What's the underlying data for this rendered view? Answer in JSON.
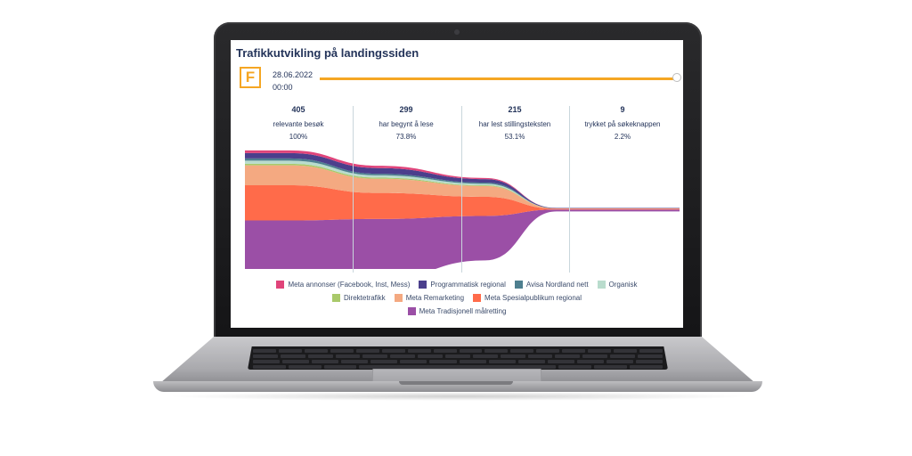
{
  "dashboard": {
    "title": "Trafikkutvikling på landingssiden",
    "logo_letter": "F",
    "date": "28.06.2022",
    "time": "00:00",
    "timeline_progress": 1.0
  },
  "colors": {
    "accent": "#f5a623",
    "text": "#24345a"
  },
  "chart_data": {
    "type": "area",
    "stages": [
      {
        "value": "405",
        "label": "relevante besøk",
        "percent": "100%"
      },
      {
        "value": "299",
        "label": "har begynt å lese",
        "percent": "73.8%"
      },
      {
        "value": "215",
        "label": "har lest stillingsteksten",
        "percent": "53.1%"
      },
      {
        "value": "9",
        "label": "trykket på søkeknappen",
        "percent": "2.2%"
      }
    ],
    "series": [
      {
        "name": "Meta Tradisjonell målretting",
        "color": "#9b4fa6",
        "values": [
          222,
          160,
          116,
          5
        ]
      },
      {
        "name": "Meta Spesialpublikum regional",
        "color": "#ff6b4a",
        "values": [
          92,
          68,
          50,
          2
        ]
      },
      {
        "name": "Meta Remarketing",
        "color": "#f4a981",
        "values": [
          52,
          37,
          28,
          1
        ]
      },
      {
        "name": "Direktetrafikk",
        "color": "#a9c96a",
        "values": [
          4,
          3,
          2,
          0
        ]
      },
      {
        "name": "Organisk",
        "color": "#b9dccd",
        "values": [
          8,
          6,
          4,
          0
        ]
      },
      {
        "name": "Avisa Nordland nett",
        "color": "#4e7f8f",
        "values": [
          6,
          4,
          3,
          0
        ]
      },
      {
        "name": "Programmatisk regional",
        "color": "#4b3f8c",
        "values": [
          14,
          15,
          9,
          1
        ]
      },
      {
        "name": "Meta annonser (Facebook, Inst, Mess)",
        "color": "#e0447a",
        "values": [
          7,
          6,
          3,
          0
        ]
      }
    ],
    "legend_rows": [
      [
        "Meta annonser (Facebook, Inst, Mess)",
        "Programmatisk regional",
        "Avisa Nordland nett",
        "Organisk"
      ],
      [
        "Direktetrafikk",
        "Meta Remarketing",
        "Meta Spesialpublikum regional"
      ],
      [
        "Meta Tradisjonell målretting"
      ]
    ]
  }
}
